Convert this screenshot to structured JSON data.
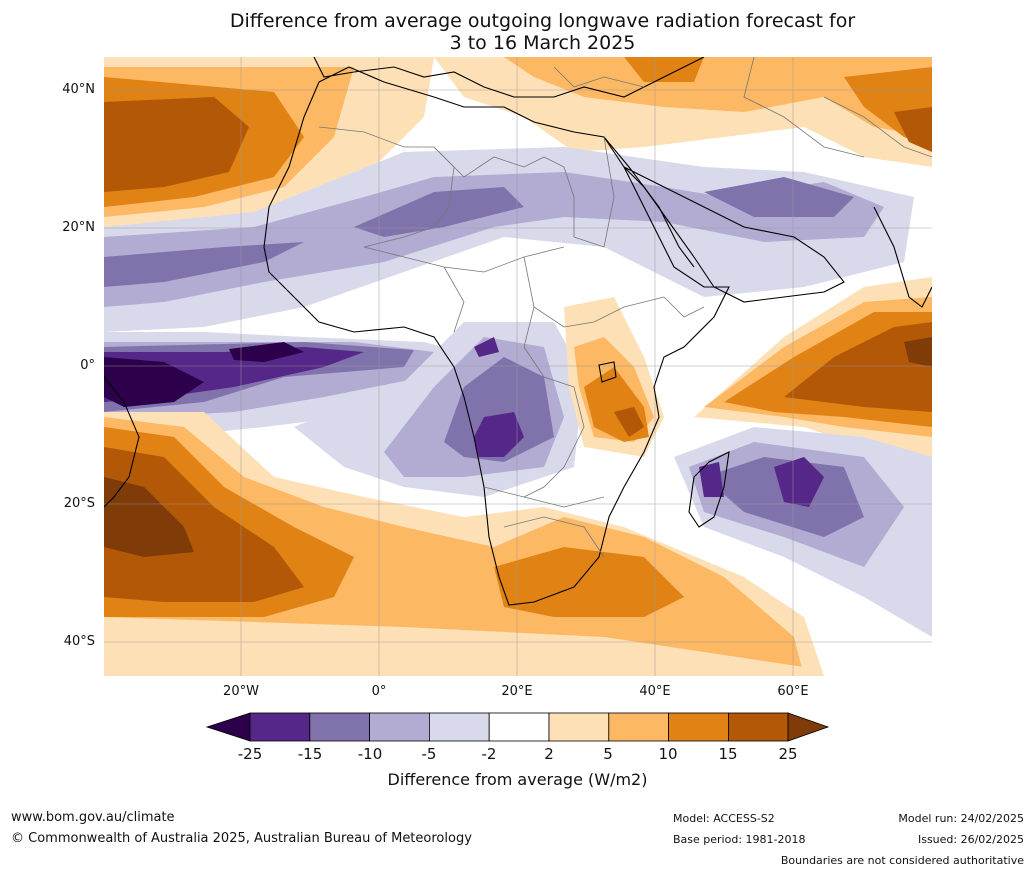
{
  "title": {
    "line1": "Difference from average outgoing longwave radiation forecast for",
    "line2": "3 to 16 March 2025"
  },
  "axes": {
    "lat_labels": [
      "40°N",
      "20°N",
      "0°",
      "20°S",
      "40°S"
    ],
    "lon_labels": [
      "20°W",
      "0°",
      "20°E",
      "40°E",
      "60°E"
    ]
  },
  "colorbar": {
    "title": "Difference from average (W/m2)",
    "ticks": [
      "-25",
      "-15",
      "-10",
      "-5",
      "-2",
      "2",
      "5",
      "10",
      "15",
      "25"
    ],
    "colors": [
      "#2d004b",
      "#542788",
      "#8073ac",
      "#b2abd2",
      "#d8daeb",
      "#ffffff",
      "#fee0b6",
      "#fdb863",
      "#e08214",
      "#b35806",
      "#7f3b08"
    ]
  },
  "footer": {
    "website": "www.bom.gov.au/climate",
    "copyright": "© Commonwealth of Australia 2025, Australian Bureau of Meteorology",
    "model": "Model: ACCESS-S2",
    "base_period": "Base period: 1981-2018",
    "model_run": "Model run: 24/02/2025",
    "issued": "Issued: 26/02/2025",
    "disclaimer": "Boundaries are not considered authoritative"
  }
}
